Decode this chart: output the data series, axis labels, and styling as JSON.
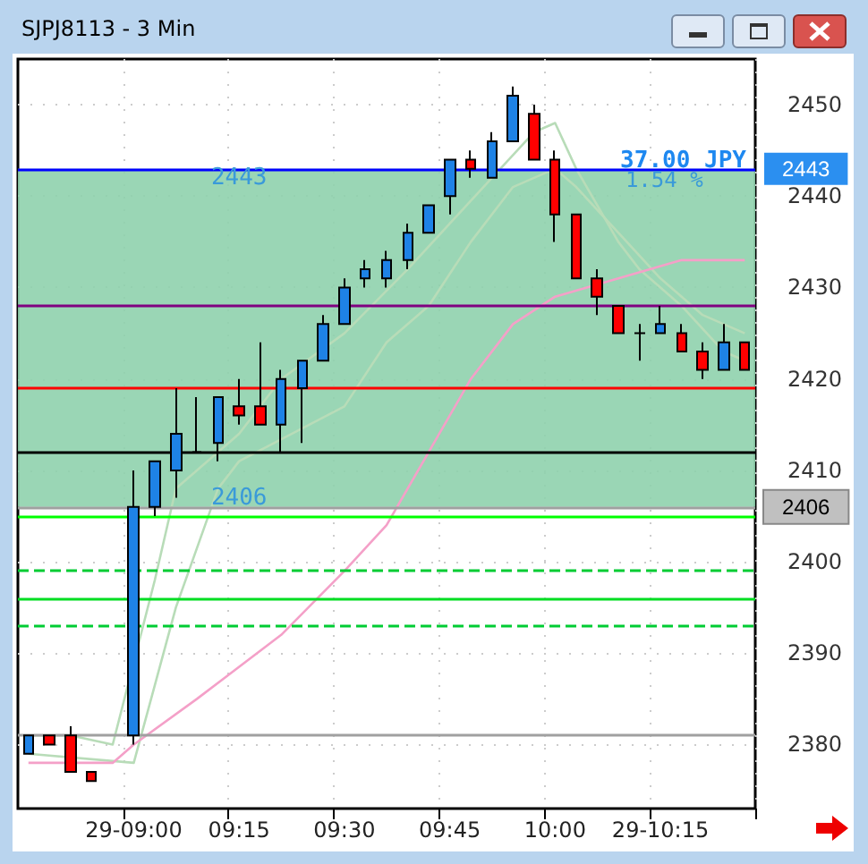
{
  "chart_data": {
    "type": "candlestick",
    "title": "SJPJ8113 - 3 Min",
    "categories": [
      null,
      null,
      null,
      null,
      null,
      "29-09:00",
      null,
      null,
      null,
      null,
      "09:15",
      null,
      null,
      null,
      null,
      "09:30",
      null,
      null,
      null,
      null,
      "09:45",
      null,
      null,
      null,
      null,
      "10:00",
      null,
      null,
      null,
      null,
      "29-10:15",
      null,
      null,
      null,
      null
    ],
    "ohlc": [
      [
        2379,
        2381,
        2379,
        2381
      ],
      [
        2381,
        2381,
        2380,
        2380
      ],
      [
        2381,
        2382,
        2377,
        2377
      ],
      [
        2377,
        2377,
        2376,
        2376
      ],
      null,
      [
        2381,
        2410,
        2380,
        2406
      ],
      [
        2406,
        2411,
        2405,
        2411
      ],
      [
        2410,
        2419,
        2407,
        2414
      ],
      [
        2412,
        2418,
        2412,
        2412
      ],
      [
        2413,
        2418,
        2411,
        2418
      ],
      [
        2417,
        2420,
        2415,
        2416
      ],
      [
        2417,
        2424,
        2415,
        2415
      ],
      [
        2415,
        2421,
        2412,
        2420
      ],
      [
        2419,
        2422,
        2413,
        2422
      ],
      [
        2422,
        2427,
        2422,
        2426
      ],
      [
        2426,
        2431,
        2426,
        2430
      ],
      [
        2431,
        2433,
        2430,
        2432
      ],
      [
        2431,
        2434,
        2430,
        2433
      ],
      [
        2433,
        2437,
        2432,
        2436
      ],
      [
        2436,
        2439,
        2436,
        2439
      ],
      [
        2440,
        2444,
        2438,
        2444
      ],
      [
        2444,
        2445,
        2442,
        2443
      ],
      [
        2442,
        2447,
        2442,
        2446
      ],
      [
        2446,
        2452,
        2446,
        2451
      ],
      [
        2449,
        2450,
        2444,
        2444
      ],
      [
        2444,
        2445,
        2435,
        2438
      ],
      [
        2438,
        2438,
        2431,
        2431
      ],
      [
        2431,
        2432,
        2427,
        2429
      ],
      [
        2428,
        2428,
        2425,
        2425
      ],
      [
        2425,
        2426,
        2422,
        2425
      ],
      [
        2425,
        2428,
        2425,
        2426
      ],
      [
        2425,
        2426,
        2423,
        2423
      ],
      [
        2423,
        2424,
        2420,
        2421
      ],
      [
        2421,
        2426,
        2421,
        2424
      ],
      [
        2424,
        2424,
        2421,
        2421
      ]
    ],
    "series": [
      {
        "type": "line",
        "color": "#b8dcb8",
        "values": [
          2381,
          null,
          2381,
          null,
          2380,
          null,
          2398,
          2408,
          null,
          null,
          2414,
          null,
          2420,
          null,
          null,
          2425,
          null,
          null,
          2432,
          null,
          2437,
          null,
          2442,
          null,
          2447,
          2448,
          2443,
          null,
          2435,
          2432,
          null,
          2428,
          null,
          2423,
          2422
        ]
      },
      {
        "type": "line",
        "color": "#b8dcb8",
        "values": [
          2379,
          null,
          null,
          null,
          null,
          2378,
          null,
          2395,
          null,
          2408,
          2411,
          null,
          null,
          null,
          null,
          2417,
          null,
          2424,
          null,
          2428,
          null,
          2435,
          null,
          2441,
          null,
          2443,
          2441,
          null,
          2436,
          null,
          2431,
          null,
          2427,
          null,
          2425
        ]
      },
      {
        "type": "line",
        "color": "#f4a0c8",
        "values": [
          2378,
          null,
          2378,
          null,
          2378,
          2380,
          null,
          null,
          2385,
          null,
          null,
          null,
          2392,
          null,
          null,
          2399,
          null,
          2404,
          null,
          2412,
          null,
          2420,
          null,
          2426,
          null,
          2429,
          null,
          null,
          2431,
          null,
          null,
          2433,
          null,
          null,
          2433
        ]
      }
    ],
    "ylim": [
      2373,
      2455
    ],
    "yticks": [
      2380,
      2390,
      2400,
      2410,
      2420,
      2430,
      2440,
      2450
    ],
    "grid": true,
    "ref_lines": [
      {
        "axis": "y",
        "value": 2443,
        "label": "2443",
        "color": "#0000ff"
      },
      {
        "axis": "y",
        "value": 2428,
        "label": null,
        "color": "#800080"
      },
      {
        "axis": "y",
        "value": 2419,
        "label": null,
        "color": "#ff0000"
      },
      {
        "axis": "y",
        "value": 2412,
        "label": null,
        "color": "#000000"
      },
      {
        "axis": "y",
        "value": 2406,
        "label": "2406",
        "color": "#a0a0a0"
      },
      {
        "axis": "y",
        "value": 2405,
        "label": null,
        "color": "#00ff00"
      },
      {
        "axis": "y",
        "value": 2399,
        "label": null,
        "color": "#00cc33",
        "line_style": "dashed"
      },
      {
        "axis": "y",
        "value": 2396,
        "label": null,
        "color": "#00dd22"
      },
      {
        "axis": "y",
        "value": 2393,
        "label": null,
        "color": "#00cc33",
        "line_style": "dashed"
      },
      {
        "axis": "y",
        "value": 2381,
        "label": null,
        "color": "#a0a0a0"
      }
    ],
    "bands": [
      {
        "axis": "y",
        "from": 2406,
        "to": 2443,
        "label": "37.00 JPY",
        "color": "#8fd1ad"
      }
    ],
    "annotations": [
      "1.54 %",
      {
        "text": "2443",
        "x": "09:15",
        "y": 2442
      },
      {
        "text": "2406",
        "x": "09:15",
        "y": 2407
      }
    ]
  }
}
